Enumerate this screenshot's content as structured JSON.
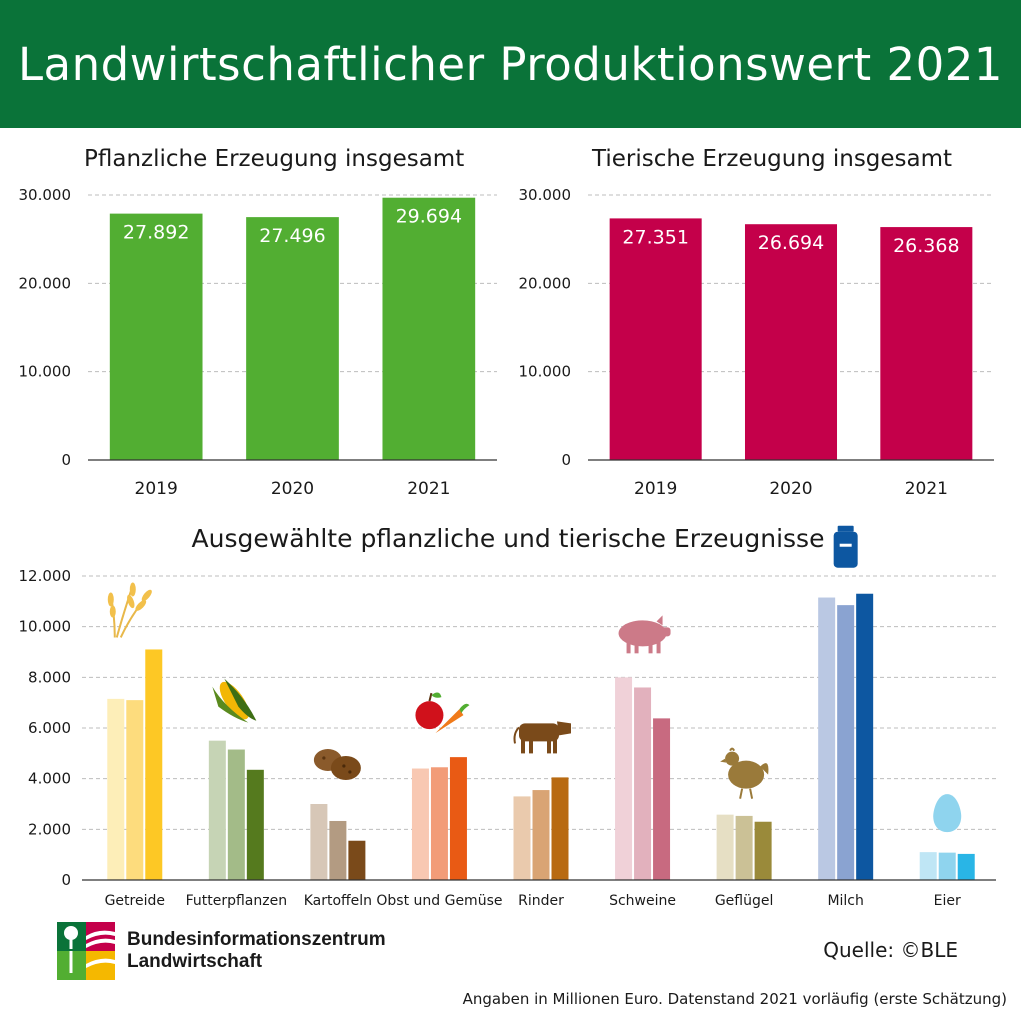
{
  "header": {
    "title": "Landwirtschaftlicher Produktionswert 2021"
  },
  "chart_data": [
    {
      "type": "bar",
      "title": "Pflanzliche Erzeugung insgesamt",
      "categories": [
        "2019",
        "2020",
        "2021"
      ],
      "values": [
        27892,
        27496,
        29694
      ],
      "value_labels": [
        "27.892",
        "27.496",
        "29.694"
      ],
      "ylim": [
        0,
        30000
      ],
      "yticks": [
        0,
        10000,
        20000,
        30000
      ],
      "ytick_labels": [
        "0",
        "10.000",
        "20.000",
        "30.000"
      ],
      "color": "#52ae32",
      "grid": true
    },
    {
      "type": "bar",
      "title": "Tierische Erzeugung insgesamt",
      "categories": [
        "2019",
        "2020",
        "2021"
      ],
      "values": [
        27351,
        26694,
        26368
      ],
      "value_labels": [
        "27.351",
        "26.694",
        "26.368"
      ],
      "ylim": [
        0,
        30000
      ],
      "yticks": [
        0,
        10000,
        20000,
        30000
      ],
      "ytick_labels": [
        "0",
        "10.000",
        "20.000",
        "30.000"
      ],
      "color": "#c4004a",
      "grid": true
    },
    {
      "type": "bar",
      "title": "Ausgewählte pflanzliche und tierische Erzeugnisse",
      "categories": [
        "Getreide",
        "Futterpflanzen",
        "Kartoffeln",
        "Obst und Gemüse",
        "Rinder",
        "Schweine",
        "Geflügel",
        "Milch",
        "Eier"
      ],
      "series": [
        {
          "values": [
            7150,
            5500,
            3000,
            4400,
            3300,
            8000,
            2580,
            11150,
            1100
          ]
        },
        {
          "values": [
            7100,
            5150,
            2330,
            4450,
            3550,
            7600,
            2530,
            10850,
            1080
          ]
        },
        {
          "values": [
            9100,
            4350,
            1550,
            4850,
            4050,
            6380,
            2300,
            11300,
            1030
          ]
        }
      ],
      "colors": [
        [
          "#fdeeb8",
          "#fddc7d",
          "#fdc825"
        ],
        [
          "#c6d4b5",
          "#a3bb88",
          "#557a1e"
        ],
        [
          "#d7c7b7",
          "#b39b82",
          "#7a4a1a"
        ],
        [
          "#f8c8b2",
          "#f29c78",
          "#e95a14"
        ],
        [
          "#eacaad",
          "#d9a474",
          "#b86a12"
        ],
        [
          "#f0d1d8",
          "#e2b1bd",
          "#c86a80"
        ],
        [
          "#e6dfc4",
          "#cbc196",
          "#9a8a3a"
        ],
        [
          "#bac8e3",
          "#8aa3d1",
          "#0d57a1"
        ],
        [
          "#bfe6f5",
          "#8fd4ee",
          "#29b5e6"
        ]
      ],
      "icons": [
        "wheat-icon",
        "corn-icon",
        "potato-icon",
        "apple-carrot-icon",
        "cow-icon",
        "pig-icon",
        "chicken-icon",
        "milk-can-icon",
        "egg-icon"
      ],
      "ylim": [
        0,
        12000
      ],
      "yticks": [
        0,
        2000,
        4000,
        6000,
        8000,
        10000,
        12000
      ],
      "ytick_labels": [
        "0",
        "2.000",
        "4.000",
        "6.000",
        "8.000",
        "10.000",
        "12.000"
      ],
      "grid": true
    }
  ],
  "footer": {
    "logo_line1": "Bundesinformationszentrum",
    "logo_line2": "Landwirtschaft",
    "source": "Quelle: ©BLE",
    "note": "Angaben in Millionen Euro. Datenstand 2021 vorläufig (erste Schätzung)"
  }
}
